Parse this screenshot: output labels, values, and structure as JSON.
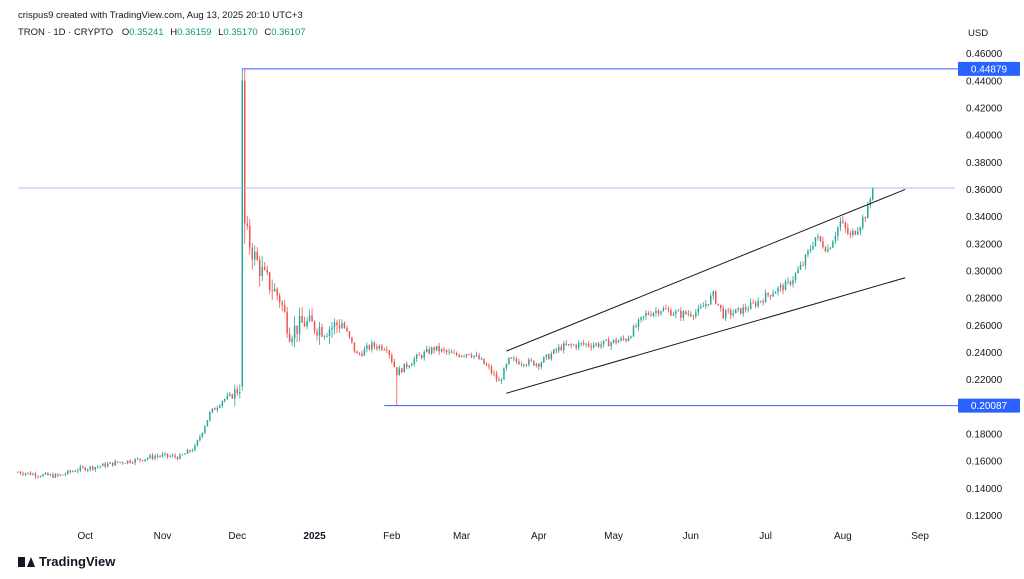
{
  "header": {
    "credit": "crispus9 created with TradingView.com, Aug 13, 2025 20:10 UTC+3",
    "symbol": "TRON · 1D · CRYPTO",
    "o_label": "O",
    "o_value": "0.35241",
    "h_label": "H",
    "h_value": "0.36159",
    "l_label": "L",
    "l_value": "0.35170",
    "c_label": "C",
    "c_value": "0.36107",
    "currency": "USD"
  },
  "brand": {
    "logo_text": "TradingView"
  },
  "colors": {
    "up": "#26a69a",
    "down": "#ef5350",
    "level_line": "#3d5afe",
    "label_bg": "#2962ff",
    "trend_line": "#131722",
    "grid_text": "#131722"
  },
  "chart_data": {
    "type": "candlestick",
    "x_ticks": [
      "Oct",
      "Nov",
      "Dec",
      "2025",
      "Feb",
      "Mar",
      "Apr",
      "May",
      "Jun",
      "Jul",
      "Aug",
      "Sep"
    ],
    "y_ticks": [
      0.12,
      0.14,
      0.16,
      0.18,
      0.2,
      0.22,
      0.24,
      0.26,
      0.28,
      0.3,
      0.32,
      0.34,
      0.36,
      0.38,
      0.4,
      0.42,
      0.44,
      0.46
    ],
    "y_tick_labels": [
      "0.12000",
      "0.14000",
      "0.16000",
      "0.18000",
      "0.20000",
      "0.22000",
      "0.24000",
      "0.26000",
      "0.28000",
      "0.30000",
      "0.32000",
      "0.34000",
      "0.36000",
      "0.38000",
      "0.40000",
      "0.42000",
      "0.44000",
      "0.46000"
    ],
    "ylim": [
      0.113,
      0.47
    ],
    "x_range": [
      "2024-09-04",
      "2025-09-15"
    ],
    "close_path": [
      [
        "2024-09-04",
        0.152
      ],
      [
        "2024-09-12",
        0.15
      ],
      [
        "2024-09-20",
        0.149
      ],
      [
        "2024-09-28",
        0.154
      ],
      [
        "2024-10-06",
        0.156
      ],
      [
        "2024-10-14",
        0.159
      ],
      [
        "2024-10-22",
        0.161
      ],
      [
        "2024-10-30",
        0.164
      ],
      [
        "2024-11-08",
        0.163
      ],
      [
        "2024-11-14",
        0.17
      ],
      [
        "2024-11-20",
        0.195
      ],
      [
        "2024-11-25",
        0.205
      ],
      [
        "2024-11-29",
        0.208
      ],
      [
        "2024-12-02",
        0.215
      ],
      [
        "2024-12-03",
        0.44
      ],
      [
        "2024-12-04",
        0.33
      ],
      [
        "2024-12-08",
        0.31
      ],
      [
        "2024-12-12",
        0.295
      ],
      [
        "2024-12-18",
        0.28
      ],
      [
        "2024-12-22",
        0.255
      ],
      [
        "2024-12-28",
        0.262
      ],
      [
        "2025-01-05",
        0.257
      ],
      [
        "2025-01-12",
        0.262
      ],
      [
        "2025-01-18",
        0.238
      ],
      [
        "2025-01-24",
        0.245
      ],
      [
        "2025-01-30",
        0.244
      ],
      [
        "2025-02-03",
        0.225
      ],
      [
        "2025-02-10",
        0.235
      ],
      [
        "2025-02-18",
        0.243
      ],
      [
        "2025-02-26",
        0.238
      ],
      [
        "2025-03-04",
        0.24
      ],
      [
        "2025-03-08",
        0.235
      ],
      [
        "2025-03-12",
        0.228
      ],
      [
        "2025-03-16",
        0.218
      ],
      [
        "2025-03-20",
        0.234
      ],
      [
        "2025-04-01",
        0.232
      ],
      [
        "2025-04-10",
        0.244
      ],
      [
        "2025-04-18",
        0.246
      ],
      [
        "2025-04-26",
        0.246
      ],
      [
        "2025-05-06",
        0.25
      ],
      [
        "2025-05-14",
        0.268
      ],
      [
        "2025-05-20",
        0.272
      ],
      [
        "2025-05-28",
        0.268
      ],
      [
        "2025-06-04",
        0.27
      ],
      [
        "2025-06-10",
        0.282
      ],
      [
        "2025-06-14",
        0.268
      ],
      [
        "2025-06-20",
        0.27
      ],
      [
        "2025-06-26",
        0.275
      ],
      [
        "2025-07-04",
        0.285
      ],
      [
        "2025-07-10",
        0.29
      ],
      [
        "2025-07-16",
        0.305
      ],
      [
        "2025-07-21",
        0.325
      ],
      [
        "2025-07-26",
        0.316
      ],
      [
        "2025-07-31",
        0.336
      ],
      [
        "2025-08-04",
        0.325
      ],
      [
        "2025-08-08",
        0.335
      ],
      [
        "2025-08-11",
        0.345
      ],
      [
        "2025-08-13",
        0.361
      ]
    ],
    "annotations": {
      "horizontal_levels": [
        {
          "value": 0.44879,
          "label": "0.44879",
          "from": "2024-12-03"
        },
        {
          "value": 0.20087,
          "label": "0.20087",
          "from": "2025-01-29"
        }
      ],
      "current_price_line": 0.361,
      "channel_upper": [
        [
          "2025-03-19",
          0.241
        ],
        [
          "2025-08-26",
          0.36
        ]
      ],
      "channel_lower": [
        [
          "2025-03-19",
          0.21
        ],
        [
          "2025-08-26",
          0.295
        ]
      ]
    }
  }
}
